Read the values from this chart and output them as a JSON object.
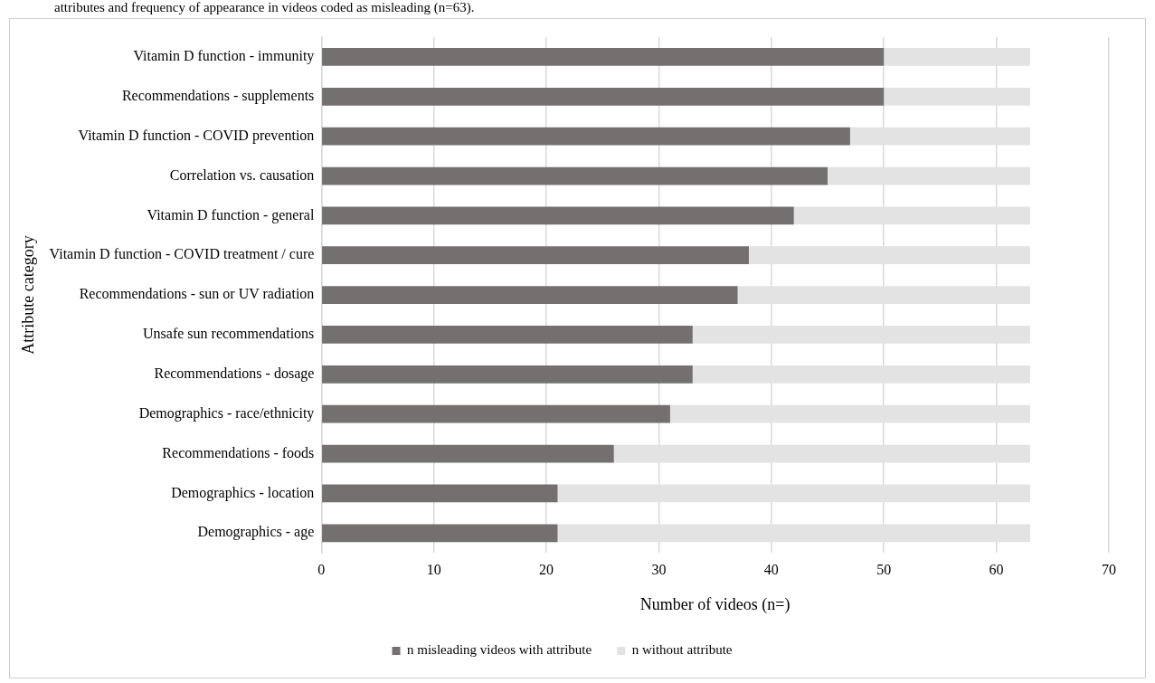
{
  "chart_data": {
    "type": "bar",
    "orientation": "horizontal",
    "stacked": true,
    "categories": [
      "Vitamin D function - immunity",
      "Recommendations - supplements",
      "Vitamin D function - COVID prevention",
      "Correlation vs. causation",
      "Vitamin D function - general",
      "Vitamin D function - COVID treatment / cure",
      "Recommendations - sun or UV radiation",
      "Unsafe sun recommendations",
      "Recommendations - dosage",
      "Demographics - race/ethnicity",
      "Recommendations - foods",
      "Demographics - location",
      "Demographics - age"
    ],
    "series": [
      {
        "name": "n misleading videos with attribute",
        "color": "#747070",
        "values": [
          50,
          50,
          47,
          45,
          42,
          38,
          37,
          33,
          33,
          31,
          26,
          21,
          21
        ]
      },
      {
        "name": "n without attribute",
        "color": "#e3e3e3",
        "values": [
          13,
          13,
          16,
          18,
          21,
          25,
          26,
          30,
          30,
          32,
          37,
          42,
          42
        ]
      }
    ],
    "xlabel": "Number of videos (n=)",
    "ylabel": "Attribute category",
    "xlim": [
      0,
      70
    ],
    "xticks": [
      0,
      10,
      20,
      30,
      40,
      50,
      60,
      70
    ],
    "grid": "x",
    "legend": "bottom",
    "annotations": [
      "attributes and frequency of appearance in videos coded as misleading (n=63)."
    ]
  }
}
